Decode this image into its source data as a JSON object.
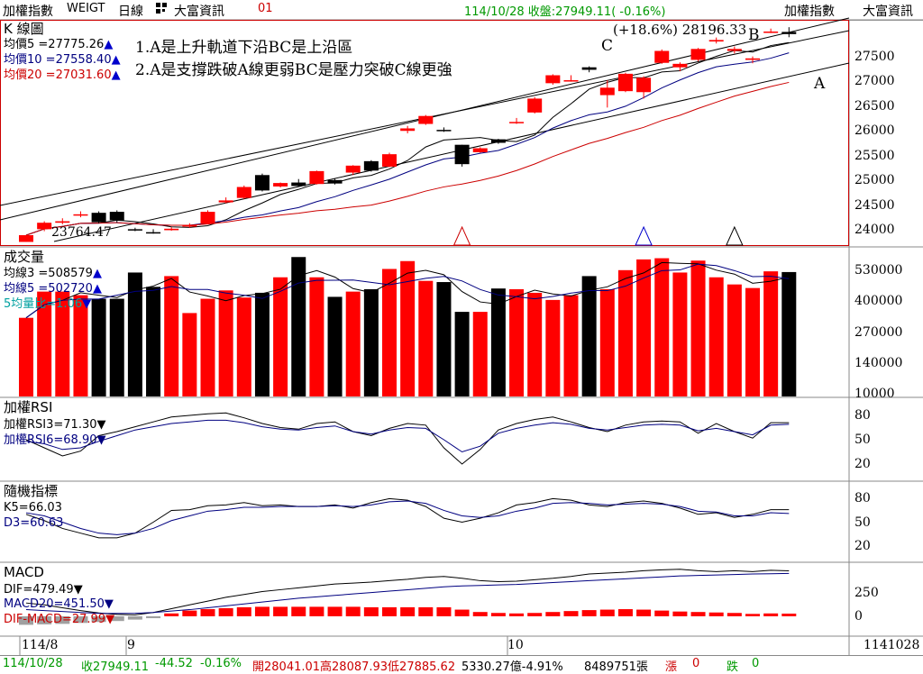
{
  "header": {
    "index_name": "加權指數",
    "code": "WEIGT",
    "period": "日線",
    "grid_icon": "grid-icon",
    "provider": "大富資訊",
    "num": "01",
    "quote": "114/10/28 收盤:27949.11( -0.16%)",
    "right_name": "加權指數",
    "right_provider": "大富資訊"
  },
  "kline": {
    "title": "K 線圖",
    "ma5": "均價5 =27775.26",
    "ma10": "均價10 =27558.40",
    "ma20": "均價20 =27031.60",
    "arrow": "▲",
    "annotation1": "1.A是上升軌道下沿BC是上沿區",
    "annotation2": "2.A是支撐跌破A線更弱BC是壓力突破C線更強",
    "peak_label": "(+18.6%) 28196.33",
    "low_label": "23764.47",
    "label_A": "A",
    "label_B": "B",
    "label_C": "C",
    "yticks": [
      "27500",
      "27000",
      "26500",
      "26000",
      "25500",
      "25000",
      "24500",
      "24000"
    ]
  },
  "volume": {
    "title": "成交量",
    "ma3": "均線3 =508579",
    "ma5": "均線5 =502720",
    "ratio": "5均量比=1.06",
    "ratio_arrow": "▼",
    "yticks": [
      "530000",
      "400000",
      "270000",
      "140000",
      "10000"
    ]
  },
  "rsi": {
    "title": "加權RSI",
    "rsi3": "加權RSI3=71.30",
    "rsi6": "加權RSI6=68.90",
    "down": "▼",
    "yticks": [
      "80",
      "50",
      "20"
    ]
  },
  "kd": {
    "title": "隨機指標",
    "k": "K5=66.03",
    "d": "D3=60.63",
    "yticks": [
      "80",
      "50",
      "20"
    ]
  },
  "macd": {
    "title": "MACD",
    "dif": "DIF=479.49",
    "macd": "MACD20=451.50",
    "osc": "DIF-MACD=27.99",
    "yticks": [
      "250",
      "0"
    ]
  },
  "xaxis": {
    "labels": [
      "114/8",
      "9",
      "10"
    ],
    "date_code": "1141028"
  },
  "status": {
    "date": "114/10/28",
    "close": "收27949.11",
    "chg": "-44.52",
    "pct": "-0.16%",
    "ohl": "開28041.01高28087.93低27885.62",
    "vol": "5330.27億-4.91%",
    "lots": "8489751張",
    "up_label": "漲",
    "up_val": "0",
    "down_label": "跌",
    "down_val": "0"
  },
  "colors": {
    "up": "#ff0000",
    "down": "#000000",
    "bg": "#ffffff",
    "ma20": "#cc0000",
    "ma10": "#000080"
  },
  "chart_data": [
    {
      "type": "candlestick",
      "title": "K 線圖",
      "ylim": [
        23700,
        28200
      ],
      "ohlc": [
        [
          23764,
          23900,
          23764,
          23900
        ],
        [
          24020,
          24180,
          23980,
          24150
        ],
        [
          24150,
          24240,
          24120,
          24180
        ],
        [
          24300,
          24380,
          24260,
          24320
        ],
        [
          24350,
          24380,
          24140,
          24160
        ],
        [
          24370,
          24400,
          24150,
          24200
        ],
        [
          24020,
          24050,
          23980,
          24000
        ],
        [
          23960,
          24020,
          23930,
          23950
        ],
        [
          24000,
          24060,
          23990,
          24030
        ],
        [
          24080,
          24140,
          24050,
          24100
        ],
        [
          24130,
          24400,
          24120,
          24370
        ],
        [
          24560,
          24660,
          24540,
          24600
        ],
        [
          24650,
          24900,
          24630,
          24870
        ],
        [
          25110,
          25140,
          24780,
          24800
        ],
        [
          24880,
          24960,
          24860,
          24950
        ],
        [
          24960,
          25030,
          24880,
          24890
        ],
        [
          24930,
          25200,
          24920,
          25190
        ],
        [
          25010,
          25040,
          24920,
          24940
        ],
        [
          25160,
          25310,
          25110,
          25300
        ],
        [
          25390,
          25410,
          25180,
          25200
        ],
        [
          25280,
          25560,
          25270,
          25530
        ],
        [
          26000,
          26100,
          25950,
          26050
        ],
        [
          26140,
          26320,
          26120,
          26300
        ],
        [
          26020,
          26070,
          25980,
          26000
        ],
        [
          25720,
          25720,
          25280,
          25330
        ],
        [
          25570,
          25670,
          25560,
          25650
        ],
        [
          25830,
          25840,
          25740,
          25760
        ],
        [
          26160,
          26260,
          26140,
          26180
        ],
        [
          26370,
          26680,
          26350,
          26650
        ],
        [
          26960,
          27140,
          26930,
          27120
        ],
        [
          27010,
          27120,
          26990,
          27020
        ],
        [
          27280,
          27300,
          27180,
          27230
        ],
        [
          26720,
          27020,
          26470,
          26870
        ],
        [
          26800,
          27170,
          26780,
          27150
        ],
        [
          26780,
          27100,
          26650,
          27070
        ],
        [
          27370,
          27640,
          27350,
          27610
        ],
        [
          27280,
          27380,
          27200,
          27350
        ],
        [
          27430,
          27670,
          27400,
          27650
        ],
        [
          27800,
          27880,
          27760,
          27830
        ],
        [
          27610,
          27700,
          27560,
          27650
        ],
        [
          27430,
          27500,
          27360,
          27460
        ],
        [
          27980,
          28060,
          27970,
          28000
        ],
        [
          27993,
          28088,
          27886,
          27949
        ]
      ]
    },
    {
      "type": "bar",
      "title": "成交量",
      "ylim": [
        0,
        620000
      ],
      "values": [
        330000,
        440000,
        440000,
        425000,
        410000,
        410000,
        520000,
        460000,
        505000,
        350000,
        410000,
        445000,
        415000,
        435000,
        500000,
        585000,
        500000,
        418000,
        440000,
        450000,
        535000,
        568000,
        485000,
        480000,
        355000,
        355000,
        453000,
        450000,
        435000,
        405000,
        425000,
        505000,
        450000,
        530000,
        575000,
        580000,
        520000,
        570000,
        500000,
        470000,
        455000,
        525000,
        522000
      ]
    },
    {
      "type": "line",
      "title": "加權RSI",
      "ylim": [
        0,
        100
      ],
      "series": [
        {
          "name": "加權RSI3",
          "values": [
            50,
            40,
            30,
            36,
            55,
            60,
            66,
            72,
            78,
            80,
            82,
            83,
            77,
            70,
            65,
            63,
            70,
            72,
            60,
            55,
            64,
            70,
            68,
            40,
            20,
            38,
            62,
            70,
            75,
            78,
            72,
            65,
            60,
            68,
            72,
            73,
            72,
            58,
            70,
            60,
            52,
            71,
            71
          ]
        },
        {
          "name": "加權RSI6",
          "values": [
            48,
            45,
            38,
            40,
            48,
            55,
            62,
            66,
            70,
            72,
            74,
            74,
            71,
            66,
            63,
            62,
            65,
            67,
            60,
            57,
            62,
            65,
            64,
            50,
            35,
            42,
            58,
            64,
            68,
            71,
            69,
            64,
            62,
            65,
            68,
            69,
            68,
            61,
            64,
            60,
            56,
            68,
            69
          ]
        }
      ]
    },
    {
      "type": "line",
      "title": "隨機指標",
      "ylim": [
        0,
        100
      ],
      "series": [
        {
          "name": "K5",
          "values": [
            60,
            52,
            42,
            36,
            30,
            30,
            36,
            50,
            65,
            66,
            71,
            72,
            75,
            71,
            72,
            70,
            70,
            72,
            68,
            75,
            80,
            78,
            70,
            55,
            50,
            55,
            62,
            72,
            75,
            80,
            78,
            72,
            70,
            75,
            77,
            74,
            68,
            60,
            62,
            56,
            60,
            66,
            66
          ]
        },
        {
          "name": "D3",
          "values": [
            62,
            58,
            50,
            42,
            36,
            34,
            36,
            42,
            52,
            58,
            64,
            66,
            69,
            69,
            70,
            70,
            70,
            71,
            70,
            72,
            76,
            77,
            74,
            65,
            58,
            56,
            58,
            64,
            68,
            74,
            75,
            74,
            72,
            73,
            74,
            73,
            70,
            64,
            63,
            58,
            58,
            62,
            61
          ]
        }
      ]
    },
    {
      "type": "line",
      "title": "MACD",
      "ylim": [
        -200,
        550
      ],
      "series": [
        {
          "name": "DIF",
          "values": [
            140,
            120,
            90,
            60,
            35,
            20,
            15,
            40,
            80,
            120,
            160,
            200,
            230,
            260,
            280,
            300,
            320,
            340,
            350,
            360,
            375,
            390,
            410,
            420,
            400,
            375,
            365,
            370,
            385,
            400,
            420,
            445,
            455,
            465,
            480,
            490,
            495,
            480,
            470,
            480,
            470,
            485,
            479
          ]
        },
        {
          "name": "MACD20",
          "values": [
            70,
            60,
            50,
            40,
            32,
            30,
            32,
            40,
            55,
            70,
            90,
            110,
            130,
            150,
            170,
            190,
            205,
            220,
            235,
            250,
            265,
            280,
            295,
            310,
            320,
            325,
            330,
            335,
            345,
            355,
            365,
            375,
            385,
            395,
            405,
            415,
            425,
            430,
            435,
            440,
            445,
            448,
            451
          ]
        },
        {
          "name": "DIF-MACD",
          "values": [
            -90,
            -85,
            -80,
            -70,
            -60,
            -50,
            -35,
            -20,
            30,
            60,
            75,
            85,
            95,
            100,
            100,
            100,
            100,
            100,
            100,
            95,
            95,
            95,
            95,
            95,
            70,
            45,
            35,
            30,
            35,
            45,
            55,
            65,
            70,
            75,
            70,
            60,
            50,
            45,
            40,
            35,
            25,
            30,
            28
          ]
        }
      ]
    }
  ]
}
